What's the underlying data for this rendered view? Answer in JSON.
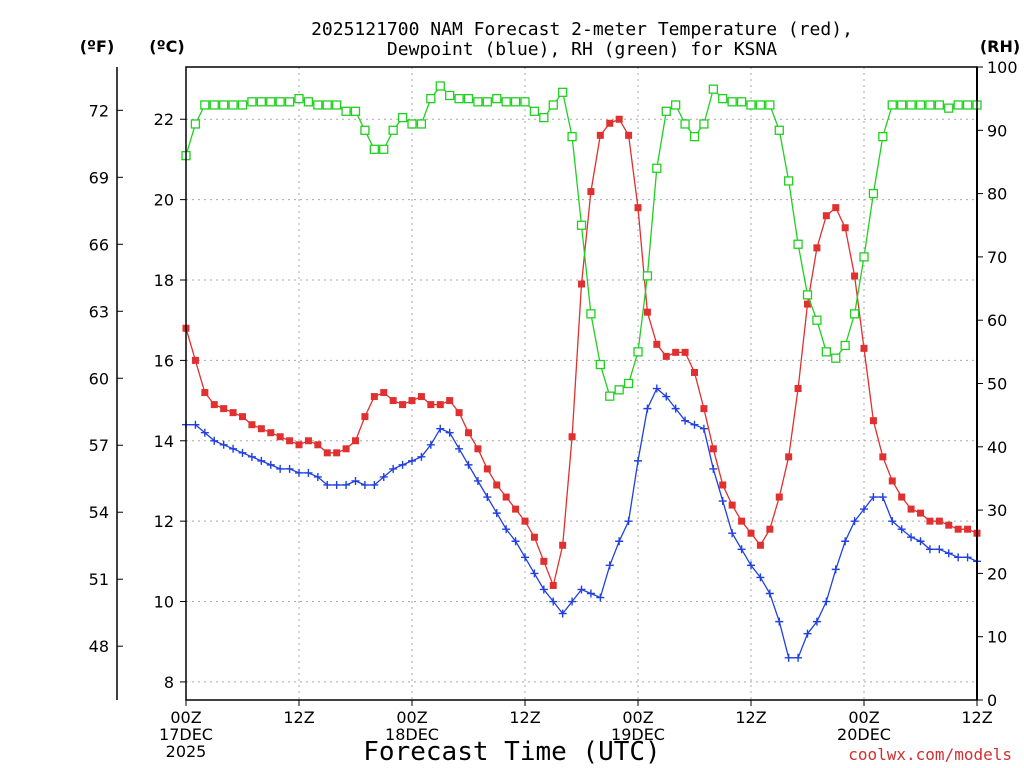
{
  "chart_data": {
    "type": "line",
    "title_lines": [
      "2025121700 NAM Forecast 2-meter Temperature (red),",
      "Dewpoint (blue), RH (green) for KSNA"
    ],
    "xlabel": "Forecast Time (UTC)",
    "credit": "coolwx.com/models",
    "units": {
      "fahrenheit": "(ºF)",
      "celsius": "(ºC)",
      "rh": "(RH)"
    },
    "xlim": [
      0,
      84
    ],
    "x_ticks": [
      {
        "hour": 0,
        "lines": [
          "00Z",
          "17DEC",
          "2025"
        ]
      },
      {
        "hour": 12,
        "lines": [
          "12Z"
        ]
      },
      {
        "hour": 24,
        "lines": [
          "00Z",
          "18DEC"
        ]
      },
      {
        "hour": 36,
        "lines": [
          "12Z"
        ]
      },
      {
        "hour": 48,
        "lines": [
          "00Z",
          "19DEC"
        ]
      },
      {
        "hour": 60,
        "lines": [
          "12Z"
        ]
      },
      {
        "hour": 72,
        "lines": [
          "00Z",
          "20DEC"
        ]
      },
      {
        "hour": 84,
        "lines": [
          "12Z"
        ]
      }
    ],
    "ylim_c": [
      7.55,
      23.3
    ],
    "c_ticks": [
      8,
      10,
      12,
      14,
      16,
      18,
      20,
      22
    ],
    "f_ticks": [
      48,
      51,
      54,
      57,
      60,
      63,
      66,
      69,
      72
    ],
    "ylim_rh": [
      0,
      100
    ],
    "rh_ticks": [
      0,
      10,
      20,
      30,
      40,
      50,
      60,
      70,
      80,
      90,
      100
    ],
    "series": [
      {
        "name": "Temperature",
        "unit": "C",
        "color": "#e03030",
        "marker": "filled-square",
        "values": [
          16.8,
          16.0,
          15.2,
          14.9,
          14.8,
          14.7,
          14.6,
          14.4,
          14.3,
          14.2,
          14.1,
          14.0,
          13.9,
          14.0,
          13.9,
          13.7,
          13.7,
          13.8,
          14.0,
          14.6,
          15.1,
          15.2,
          15.0,
          14.9,
          15.0,
          15.1,
          14.9,
          14.9,
          15.0,
          14.7,
          14.2,
          13.8,
          13.3,
          12.9,
          12.6,
          12.3,
          12.0,
          11.6,
          11.0,
          10.4,
          11.4,
          14.1,
          17.9,
          20.2,
          21.6,
          21.9,
          22.0,
          21.6,
          19.8,
          17.2,
          16.4,
          16.1,
          16.2,
          16.2,
          15.7,
          14.8,
          13.8,
          12.9,
          12.4,
          12.0,
          11.7,
          11.4,
          11.8,
          12.6,
          13.6,
          15.3,
          17.4,
          18.8,
          19.6,
          19.8,
          19.3,
          18.1,
          16.3,
          14.5,
          13.6,
          13.0,
          12.6,
          12.3,
          12.2,
          12.0,
          12.0,
          11.9,
          11.8,
          11.8,
          11.7
        ]
      },
      {
        "name": "Dewpoint",
        "unit": "C",
        "color": "#2040e0",
        "marker": "plus",
        "values": [
          14.4,
          14.4,
          14.2,
          14.0,
          13.9,
          13.8,
          13.7,
          13.6,
          13.5,
          13.4,
          13.3,
          13.3,
          13.2,
          13.2,
          13.1,
          12.9,
          12.9,
          12.9,
          13.0,
          12.9,
          12.9,
          13.1,
          13.3,
          13.4,
          13.5,
          13.6,
          13.9,
          14.3,
          14.2,
          13.8,
          13.4,
          13.0,
          12.6,
          12.2,
          11.8,
          11.5,
          11.1,
          10.7,
          10.3,
          10.0,
          9.7,
          10.0,
          10.3,
          10.2,
          10.1,
          10.9,
          11.5,
          12.0,
          13.5,
          14.8,
          15.3,
          15.1,
          14.8,
          14.5,
          14.4,
          14.3,
          13.3,
          12.5,
          11.7,
          11.3,
          10.9,
          10.6,
          10.2,
          9.5,
          8.6,
          8.6,
          9.2,
          9.5,
          10.0,
          10.8,
          11.5,
          12.0,
          12.3,
          12.6,
          12.6,
          12.0,
          11.8,
          11.6,
          11.5,
          11.3,
          11.3,
          11.2,
          11.1,
          11.1,
          11.0
        ]
      },
      {
        "name": "RH",
        "unit": "%",
        "color": "#20d020",
        "marker": "open-square",
        "values": [
          86,
          91,
          94,
          94,
          94,
          94,
          94,
          94.5,
          94.5,
          94.5,
          94.5,
          94.5,
          95,
          94.5,
          94,
          94,
          94,
          93,
          93,
          90,
          87,
          87,
          90,
          92,
          91,
          91,
          95,
          97,
          95.5,
          95,
          95,
          94.5,
          94.5,
          95,
          94.5,
          94.5,
          94.5,
          93,
          92,
          94,
          96,
          89,
          75,
          61,
          53,
          48,
          49,
          50,
          55,
          67,
          84,
          93,
          94,
          91,
          89,
          91,
          96.5,
          95,
          94.5,
          94.5,
          94,
          94,
          94,
          90,
          82,
          72,
          64,
          60,
          55,
          54,
          56,
          61,
          70,
          80,
          89,
          94,
          94,
          94,
          94,
          94,
          94,
          93.5,
          94,
          94,
          94
        ]
      }
    ]
  }
}
